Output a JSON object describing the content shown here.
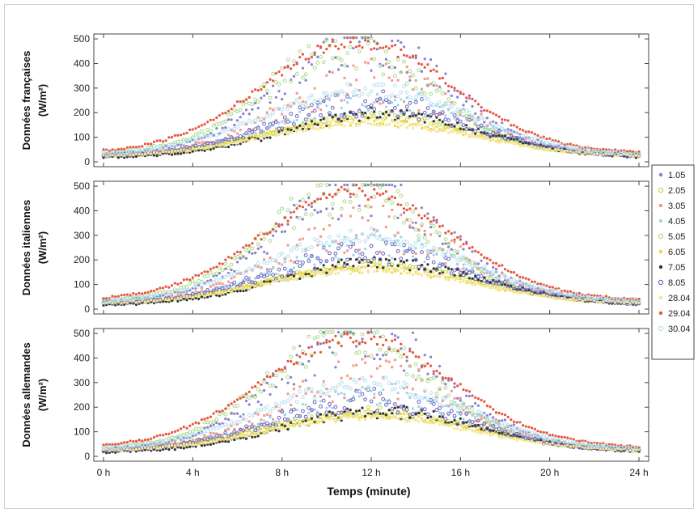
{
  "chart_data": {
    "type": "scatter",
    "xlabel": "Temps (minute)",
    "x_ticks": [
      "0 h",
      "4 h",
      "8 h",
      "12 h",
      "16 h",
      "20 h",
      "24 h"
    ],
    "xlim": [
      0,
      24
    ],
    "ylim": [
      0,
      520
    ],
    "y_ticks": [
      "0",
      "100",
      "200",
      "300",
      "400",
      "500"
    ],
    "legend_placement": "right",
    "legend": [
      {
        "name": "1.05",
        "color": "#8a7fd0",
        "peak": 500,
        "center": 11.6,
        "width": 3.7,
        "base": 30,
        "noise": 0.18
      },
      {
        "name": "2.05",
        "color": "#c6d84a",
        "peak": 180,
        "center": 12.2,
        "width": 4.5,
        "base": 20,
        "noise": 0.08
      },
      {
        "name": "3.05",
        "color": "#f29a8c",
        "peak": 330,
        "center": 12.0,
        "width": 4.0,
        "base": 25,
        "noise": 0.22
      },
      {
        "name": "4.05",
        "color": "#9fd3ea",
        "peak": 260,
        "center": 12.3,
        "width": 4.2,
        "base": 25,
        "noise": 0.15
      },
      {
        "name": "5.05",
        "color": "#a9d98a",
        "peak": 480,
        "center": 11.0,
        "width": 3.6,
        "base": 35,
        "noise": 0.14
      },
      {
        "name": "6.05",
        "color": "#f2d84a",
        "peak": 170,
        "center": 11.8,
        "width": 4.8,
        "base": 15,
        "noise": 0.07
      },
      {
        "name": "7.05",
        "color": "#333333",
        "peak": 190,
        "center": 12.5,
        "width": 4.4,
        "base": 15,
        "noise": 0.1
      },
      {
        "name": "8.05",
        "color": "#6b63c0",
        "peak": 230,
        "center": 12.0,
        "width": 4.3,
        "base": 20,
        "noise": 0.16
      },
      {
        "name": "28.04",
        "color": "#f5e79a",
        "peak": 160,
        "center": 12.0,
        "width": 4.6,
        "base": 20,
        "noise": 0.05
      },
      {
        "name": "29.04",
        "color": "#e8553f",
        "peak": 495,
        "center": 11.4,
        "width": 4.2,
        "base": 35,
        "noise": 0.04
      },
      {
        "name": "30.04",
        "color": "#b7e0f0",
        "peak": 300,
        "center": 11.8,
        "width": 4.5,
        "base": 25,
        "noise": 0.07
      }
    ],
    "panels": [
      {
        "ylabel_line1": "Données françaises",
        "ylabel_line2": "(W/m²)",
        "seed": 11
      },
      {
        "ylabel_line1": "Données italiennes",
        "ylabel_line2": "(W/m²)",
        "seed": 23
      },
      {
        "ylabel_line1": "Données allemandes",
        "ylabel_line2": "(W/m²)",
        "seed": 37
      }
    ]
  }
}
